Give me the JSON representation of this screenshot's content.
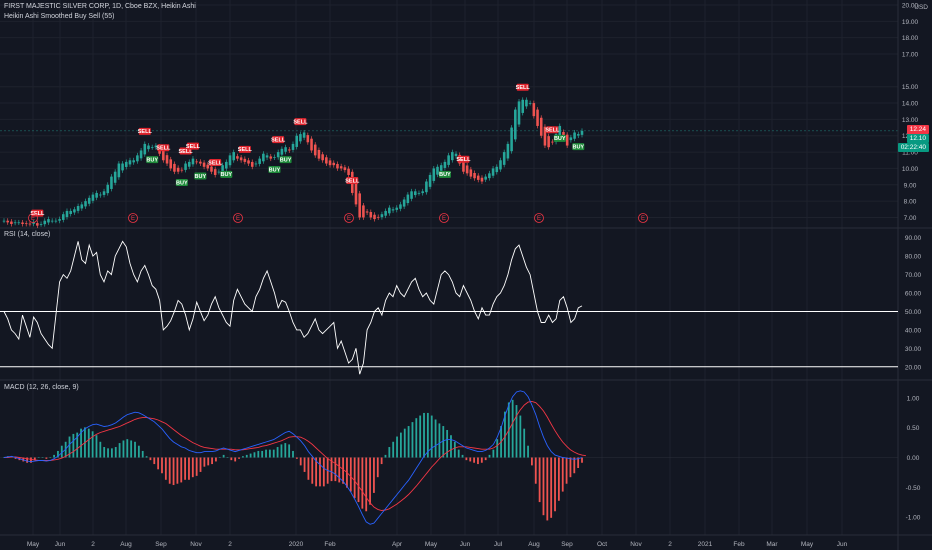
{
  "header": {
    "title": "FIRST MAJESTIC SILVER CORP, 1D, Cboe BZX, Heikin Ashi",
    "indicator": "Heikin Ashi Smoothed Buy Sell  (55)"
  },
  "panes": {
    "rsi_title": "RSI (14, close)",
    "macd_title": "MACD (12, 26, close, 9)"
  },
  "currency": "USD",
  "price_tags": [
    {
      "text": "12.24",
      "color": "#f23645"
    },
    {
      "text": "12.10",
      "color": "#089981"
    },
    {
      "text": "02:22:40",
      "color": "#089981"
    }
  ],
  "colors": {
    "up": "#26a69a",
    "down": "#ef5350",
    "buy": "#1e8a3a",
    "sell": "#e0242d",
    "rsi": "#ffffff",
    "macd": "#2962ff",
    "signal": "#f23645",
    "hist_up": "#26a69a",
    "hist_down": "#ef5350"
  },
  "chart_data": [
    {
      "type": "candlestick",
      "name": "price",
      "x_ticks": [
        "May",
        "Jun",
        "2",
        "Aug",
        "Sep",
        "Nov",
        "2",
        "2020",
        "Feb",
        "Apr",
        "May",
        "Jun",
        "Jul",
        "Aug",
        "Sep",
        "Oct",
        "Nov",
        "2",
        "2021",
        "Feb",
        "Mar",
        "May",
        "Jun"
      ],
      "y_ticks": [
        "7.00",
        "8.00",
        "9.00",
        "10.00",
        "11.00",
        "12.00",
        "13.00",
        "14.00",
        "15.00",
        "17.00",
        "18.00",
        "19.00",
        "20.00"
      ],
      "ylim": [
        6.6,
        20.0
      ],
      "close": [
        6.8,
        6.7,
        6.6,
        6.7,
        6.7,
        6.6,
        6.6,
        6.6,
        6.7,
        6.5,
        6.6,
        6.8,
        6.9,
        6.8,
        6.8,
        6.9,
        7.2,
        7.4,
        7.4,
        7.5,
        7.7,
        7.8,
        8.0,
        8.2,
        8.4,
        8.5,
        8.4,
        8.6,
        9.0,
        9.5,
        9.8,
        10.3,
        10.3,
        10.4,
        10.5,
        10.5,
        10.8,
        11.1,
        11.5,
        11.4,
        11.3,
        11.4,
        10.9,
        10.5,
        10.3,
        10.0,
        9.8,
        9.8,
        9.9,
        10.3,
        10.4,
        10.6,
        10.4,
        10.3,
        10.1,
        10.0,
        9.8,
        9.6,
        9.8,
        10.2,
        10.4,
        10.8,
        11.0,
        10.6,
        10.5,
        10.4,
        10.3,
        10.1,
        10.3,
        10.6,
        10.9,
        10.8,
        10.6,
        10.7,
        11.0,
        11.2,
        11.3,
        11.1,
        11.5,
        12.0,
        12.1,
        12.2,
        11.6,
        11.1,
        10.8,
        10.6,
        10.5,
        10.3,
        10.2,
        10.2,
        10.0,
        10.0,
        9.9,
        9.6,
        8.5,
        7.8,
        7.0,
        7.0,
        7.3,
        7.0,
        6.9,
        7.0,
        7.2,
        7.4,
        7.6,
        7.5,
        7.6,
        7.8,
        8.1,
        8.4,
        8.6,
        8.6,
        8.5,
        8.6,
        9.2,
        9.6,
        10.0,
        10.1,
        10.2,
        10.4,
        10.8,
        11.0,
        10.9,
        10.3,
        9.8,
        9.7,
        9.5,
        9.4,
        9.3,
        9.2,
        9.5,
        9.7,
        10.0,
        10.1,
        10.5,
        11.0,
        11.5,
        12.5,
        13.6,
        14.1,
        14.2,
        14.2,
        14.0,
        13.2,
        12.6,
        12.0,
        11.4,
        11.3,
        11.6,
        12.1,
        12.6,
        11.9,
        11.4,
        11.9,
        12.2,
        12.1,
        12.3
      ],
      "signals": [
        {
          "kind": "SELL",
          "index": 9
        },
        {
          "kind": "SELL",
          "index": 38
        },
        {
          "kind": "BUY",
          "index": 40
        },
        {
          "kind": "SELL",
          "index": 43
        },
        {
          "kind": "BUY",
          "index": 48
        },
        {
          "kind": "SELL",
          "index": 49
        },
        {
          "kind": "SELL",
          "index": 51
        },
        {
          "kind": "BUY",
          "index": 53
        },
        {
          "kind": "SELL",
          "index": 57
        },
        {
          "kind": "BUY",
          "index": 60
        },
        {
          "kind": "SELL",
          "index": 65
        },
        {
          "kind": "BUY",
          "index": 73
        },
        {
          "kind": "SELL",
          "index": 74
        },
        {
          "kind": "BUY",
          "index": 76
        },
        {
          "kind": "SELL",
          "index": 80
        },
        {
          "kind": "SELL",
          "index": 94
        },
        {
          "kind": "BUY",
          "index": 119
        },
        {
          "kind": "SELL",
          "index": 124
        },
        {
          "kind": "SELL",
          "index": 140
        },
        {
          "kind": "SELL",
          "index": 148
        },
        {
          "kind": "BUY",
          "index": 150
        },
        {
          "kind": "BUY",
          "index": 155
        }
      ],
      "earnings_markers": [
        "E",
        "E",
        "E",
        "E",
        "E",
        "E",
        "E",
        "E"
      ]
    },
    {
      "type": "line",
      "name": "RSI (14, close)",
      "y_ticks": [
        "20.00",
        "30.00",
        "40.00",
        "50.00",
        "60.00",
        "70.00",
        "80.00",
        "90.00"
      ],
      "ylim": [
        15,
        92
      ],
      "levels": [
        50,
        20
      ],
      "values": [
        50,
        46,
        40,
        38,
        35,
        48,
        42,
        36,
        47,
        44,
        38,
        35,
        32,
        30,
        48,
        66,
        70,
        68,
        72,
        80,
        88,
        78,
        76,
        86,
        80,
        82,
        70,
        66,
        72,
        70,
        80,
        84,
        88,
        85,
        76,
        70,
        66,
        72,
        75,
        70,
        64,
        62,
        56,
        40,
        42,
        45,
        50,
        56,
        54,
        48,
        40,
        46,
        55,
        50,
        45,
        48,
        54,
        58,
        52,
        48,
        44,
        42,
        56,
        62,
        58,
        54,
        52,
        50,
        58,
        62,
        68,
        72,
        66,
        60,
        52,
        56,
        55,
        50,
        44,
        40,
        40,
        36,
        38,
        42,
        46,
        40,
        38,
        40,
        42,
        44,
        30,
        34,
        28,
        22,
        24,
        30,
        16,
        22,
        40,
        44,
        50,
        52,
        48,
        56,
        60,
        58,
        64,
        60,
        58,
        62,
        66,
        68,
        62,
        58,
        60,
        56,
        54,
        62,
        70,
        72,
        70,
        66,
        60,
        58,
        64,
        60,
        56,
        50,
        46,
        52,
        48,
        48,
        54,
        58,
        60,
        64,
        70,
        78,
        84,
        86,
        80,
        74,
        70,
        60,
        50,
        44,
        44,
        48,
        44,
        46,
        56,
        58,
        52,
        44,
        46,
        52,
        53
      ],
      "title": "RSI (14, close)"
    },
    {
      "type": "line",
      "name": "MACD (12, 26, close, 9)",
      "y_ticks": [
        "-1.00",
        "-0.50",
        "0.00",
        "0.50",
        "1.00"
      ],
      "ylim": [
        -1.25,
        1.2
      ],
      "macd": [
        0,
        0.01,
        0.02,
        0,
        -0.02,
        -0.04,
        -0.06,
        -0.07,
        -0.06,
        -0.05,
        -0.05,
        -0.06,
        -0.05,
        -0.02,
        0.02,
        0.08,
        0.14,
        0.22,
        0.28,
        0.34,
        0.42,
        0.48,
        0.52,
        0.55,
        0.56,
        0.54,
        0.52,
        0.53,
        0.55,
        0.58,
        0.63,
        0.68,
        0.72,
        0.74,
        0.76,
        0.75,
        0.72,
        0.68,
        0.64,
        0.6,
        0.54,
        0.48,
        0.4,
        0.32,
        0.26,
        0.22,
        0.18,
        0.16,
        0.12,
        0.1,
        0.08,
        0.08,
        0.1,
        0.1,
        0.1,
        0.11,
        0.14,
        0.16,
        0.14,
        0.12,
        0.1,
        0.12,
        0.14,
        0.16,
        0.18,
        0.2,
        0.22,
        0.24,
        0.26,
        0.28,
        0.3,
        0.34,
        0.38,
        0.42,
        0.44,
        0.4,
        0.34,
        0.28,
        0.2,
        0.1,
        0.02,
        -0.06,
        -0.12,
        -0.18,
        -0.22,
        -0.24,
        -0.28,
        -0.34,
        -0.4,
        -0.48,
        -0.58,
        -0.7,
        -0.82,
        -0.96,
        -1.08,
        -1.12,
        -1.1,
        -1.02,
        -0.94,
        -0.86,
        -0.78,
        -0.7,
        -0.62,
        -0.54,
        -0.46,
        -0.38,
        -0.28,
        -0.18,
        -0.08,
        0.02,
        0.1,
        0.16,
        0.2,
        0.24,
        0.28,
        0.3,
        0.3,
        0.28,
        0.24,
        0.2,
        0.16,
        0.14,
        0.12,
        0.1,
        0.1,
        0.12,
        0.16,
        0.22,
        0.34,
        0.5,
        0.7,
        0.88,
        1.02,
        1.1,
        1.12,
        1.1,
        1.02,
        0.88,
        0.72,
        0.52,
        0.34,
        0.2,
        0.1,
        0.04,
        0.02,
        0.0,
        -0.01,
        -0.02,
        -0.03,
        -0.02,
        0
      ],
      "signal": [
        0,
        0,
        0.01,
        0.01,
        0,
        -0.01,
        -0.02,
        -0.03,
        -0.04,
        -0.05,
        -0.05,
        -0.05,
        -0.05,
        -0.04,
        -0.03,
        -0.01,
        0.02,
        0.06,
        0.1,
        0.15,
        0.2,
        0.25,
        0.3,
        0.35,
        0.39,
        0.42,
        0.44,
        0.46,
        0.48,
        0.5,
        0.52,
        0.55,
        0.58,
        0.61,
        0.64,
        0.66,
        0.67,
        0.67,
        0.66,
        0.65,
        0.63,
        0.6,
        0.57,
        0.52,
        0.47,
        0.42,
        0.37,
        0.33,
        0.29,
        0.25,
        0.22,
        0.19,
        0.17,
        0.16,
        0.15,
        0.14,
        0.14,
        0.14,
        0.14,
        0.14,
        0.13,
        0.13,
        0.13,
        0.14,
        0.15,
        0.16,
        0.17,
        0.19,
        0.2,
        0.22,
        0.24,
        0.26,
        0.28,
        0.31,
        0.34,
        0.35,
        0.35,
        0.34,
        0.31,
        0.27,
        0.22,
        0.16,
        0.1,
        0.04,
        -0.02,
        -0.06,
        -0.1,
        -0.15,
        -0.2,
        -0.25,
        -0.32,
        -0.39,
        -0.48,
        -0.57,
        -0.67,
        -0.76,
        -0.83,
        -0.87,
        -0.89,
        -0.88,
        -0.86,
        -0.82,
        -0.78,
        -0.73,
        -0.68,
        -0.62,
        -0.55,
        -0.48,
        -0.4,
        -0.32,
        -0.24,
        -0.16,
        -0.09,
        -0.02,
        0.04,
        0.09,
        0.13,
        0.16,
        0.18,
        0.18,
        0.18,
        0.17,
        0.16,
        0.15,
        0.14,
        0.14,
        0.14,
        0.16,
        0.2,
        0.26,
        0.35,
        0.46,
        0.58,
        0.7,
        0.8,
        0.88,
        0.93,
        0.94,
        0.92,
        0.86,
        0.78,
        0.68,
        0.56,
        0.45,
        0.35,
        0.26,
        0.19,
        0.13,
        0.09,
        0.06,
        0.04,
        0.03
      ],
      "title": "MACD (12, 26, close, 9)"
    }
  ]
}
